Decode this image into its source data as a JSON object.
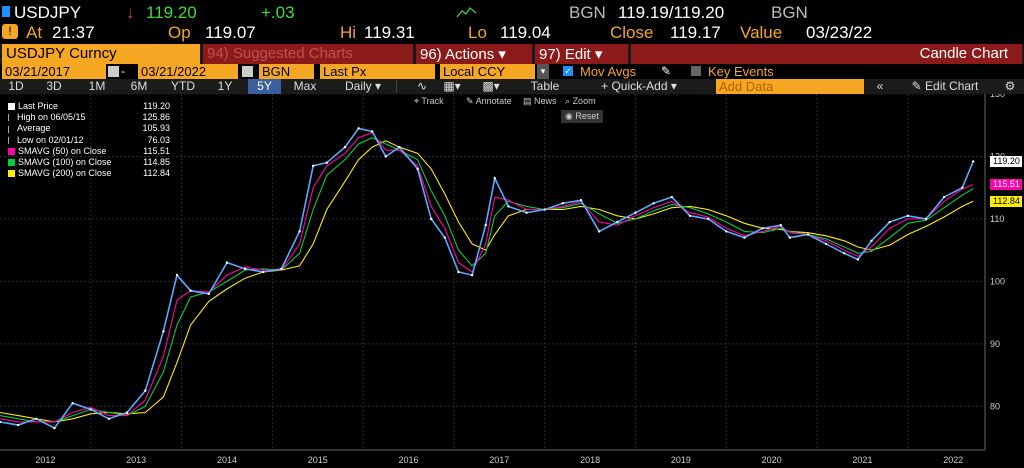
{
  "header": {
    "ticker": "USDJPY",
    "last": "119.20",
    "change": "+.03",
    "source_label": "BGN",
    "bid_ask": "119.19/119.20",
    "source_label2": "BGN",
    "at_label": "At",
    "time": "21:37",
    "op_label": "Op",
    "open": "119.07",
    "hi_label": "Hi",
    "high": "119.31",
    "lo_label": "Lo",
    "low": "119.04",
    "close_label": "Close",
    "close": "119.17",
    "value_label": "Value",
    "value_date": "03/23/22"
  },
  "toolbar": {
    "security": "USDJPY Curncy",
    "suggested": "94) Suggested Charts",
    "actions": "96) Actions",
    "edit": "97) Edit",
    "chart_type": "Candle Chart",
    "start_date": "03/21/2017",
    "end_date": "03/21/2022",
    "source": "BGN",
    "price_field": "Last Px",
    "currency": "Local CCY",
    "mov_avgs": "Mov Avgs",
    "key_events": "Key Events"
  },
  "periods": [
    "1D",
    "3D",
    "1M",
    "6M",
    "YTD",
    "1Y",
    "5Y",
    "Max"
  ],
  "selected_period": "5Y",
  "frequency": "Daily",
  "table_label": "Table",
  "quick_add_label": "+ Quick-Add",
  "add_data_placeholder": "Add Data",
  "edit_chart_label": "Edit Chart",
  "tools": {
    "track": "Track",
    "annotate": "Annotate",
    "news": "News",
    "zoom": "Zoom",
    "reset": "Reset"
  },
  "legend": [
    {
      "label": "Last Price",
      "value": "119.20",
      "color": "#ffffff"
    },
    {
      "label": "High on 06/05/15",
      "value": "125.86",
      "color": ""
    },
    {
      "label": "Average",
      "value": "105.93",
      "color": ""
    },
    {
      "label": "Low on 02/01/12",
      "value": "76.03",
      "color": ""
    },
    {
      "label": "SMAVG (50)  on Close",
      "value": "115.51",
      "color": "#ff00aa"
    },
    {
      "label": "SMAVG (100)  on Close",
      "value": "114.85",
      "color": "#00cc44"
    },
    {
      "label": "SMAVG (200)  on Close",
      "value": "112.84",
      "color": "#ffee00"
    }
  ],
  "price_tags": [
    {
      "value": "119.20",
      "color": "#ffffff",
      "text_color": "#000000"
    },
    {
      "value": "115.51",
      "color": "#ff00aa",
      "text_color": "#ffffff"
    },
    {
      "value": "112.84",
      "color": "#ffee00",
      "text_color": "#000000"
    }
  ],
  "chart_data": {
    "type": "line",
    "title": "",
    "xlabel": "",
    "ylabel": "",
    "ylim": [
      73,
      130
    ],
    "y_ticks": [
      80,
      90,
      100,
      110,
      120,
      130
    ],
    "x_ticks": [
      "2012",
      "2013",
      "2014",
      "2015",
      "2016",
      "2017",
      "2018",
      "2019",
      "2020",
      "2021",
      "2022"
    ],
    "grid": true,
    "x": [
      2011.5,
      2011.7,
      2011.9,
      2012.1,
      2012.3,
      2012.5,
      2012.7,
      2012.9,
      2013.1,
      2013.3,
      2013.45,
      2013.6,
      2013.8,
      2014.0,
      2014.2,
      2014.4,
      2014.6,
      2014.8,
      2014.95,
      2015.1,
      2015.3,
      2015.45,
      2015.6,
      2015.75,
      2015.9,
      2016.1,
      2016.25,
      2016.4,
      2016.55,
      2016.7,
      2016.85,
      2016.95,
      2017.1,
      2017.3,
      2017.5,
      2017.7,
      2017.9,
      2018.1,
      2018.3,
      2018.5,
      2018.7,
      2018.9,
      2019.1,
      2019.3,
      2019.5,
      2019.7,
      2019.9,
      2020.1,
      2020.2,
      2020.4,
      2020.6,
      2020.8,
      2020.95,
      2021.1,
      2021.3,
      2021.5,
      2021.7,
      2021.9,
      2022.1,
      2022.22
    ],
    "series": [
      {
        "name": "Last Price",
        "color": "#5aaaff",
        "values": [
          77.5,
          77.0,
          78.0,
          76.5,
          80.5,
          79.5,
          78.0,
          79.0,
          82.5,
          92.0,
          101.0,
          98.5,
          98.0,
          103.0,
          102.0,
          101.5,
          102.0,
          108.0,
          118.5,
          119.0,
          121.5,
          124.5,
          124.0,
          120.0,
          121.5,
          118.0,
          110.0,
          107.0,
          101.5,
          101.0,
          109.0,
          116.5,
          112.0,
          111.0,
          111.5,
          112.5,
          113.0,
          108.0,
          109.5,
          111.0,
          112.5,
          113.5,
          110.5,
          110.0,
          108.0,
          107.0,
          108.5,
          109.0,
          107.0,
          107.5,
          106.0,
          104.5,
          103.5,
          106.5,
          109.5,
          110.5,
          110.0,
          113.5,
          115.0,
          119.2
        ]
      },
      {
        "name": "SMAVG (50)  on Close",
        "color": "#ff00aa",
        "values": [
          78.0,
          77.5,
          77.5,
          77.5,
          79.0,
          79.8,
          78.5,
          78.5,
          81.0,
          88.0,
          97.0,
          98.5,
          98.3,
          101.0,
          102.3,
          101.8,
          101.8,
          106.0,
          115.0,
          118.5,
          120.5,
          123.0,
          123.8,
          121.0,
          121.0,
          118.5,
          112.0,
          108.5,
          103.0,
          101.5,
          106.0,
          113.5,
          113.0,
          111.5,
          111.5,
          112.0,
          112.8,
          109.5,
          109.0,
          110.5,
          111.8,
          112.8,
          111.0,
          110.3,
          108.5,
          107.3,
          108.0,
          108.8,
          107.8,
          107.5,
          106.5,
          105.0,
          104.0,
          105.5,
          108.5,
          110.0,
          110.0,
          112.8,
          114.8,
          115.5
        ]
      },
      {
        "name": "SMAVG (100)  on Close",
        "color": "#00cc44",
        "values": [
          78.5,
          78.0,
          77.5,
          77.5,
          78.5,
          79.5,
          79.0,
          78.5,
          80.0,
          85.5,
          93.0,
          97.5,
          98.3,
          100.0,
          101.8,
          102.0,
          101.8,
          104.5,
          111.5,
          117.0,
          119.5,
          122.0,
          123.0,
          122.0,
          121.0,
          119.5,
          114.5,
          110.5,
          105.0,
          102.5,
          104.5,
          110.5,
          112.8,
          112.0,
          111.5,
          111.8,
          112.5,
          110.8,
          109.3,
          110.0,
          111.3,
          112.3,
          111.8,
          110.8,
          109.5,
          108.0,
          107.8,
          108.5,
          108.0,
          107.5,
          106.8,
          105.5,
          104.5,
          104.8,
          107.0,
          109.3,
          109.8,
          111.8,
          113.8,
          114.85
        ]
      },
      {
        "name": "SMAVG (200)  on Close",
        "color": "#ffee00",
        "values": [
          79.0,
          78.5,
          78.0,
          77.5,
          78.0,
          78.8,
          79.0,
          78.8,
          79.0,
          81.5,
          87.0,
          93.0,
          96.8,
          98.8,
          100.5,
          101.5,
          101.8,
          102.5,
          106.0,
          111.5,
          116.0,
          119.5,
          121.5,
          122.5,
          121.5,
          120.5,
          118.0,
          114.0,
          109.5,
          106.0,
          105.0,
          107.5,
          110.5,
          111.5,
          111.5,
          111.5,
          112.0,
          111.5,
          110.5,
          110.0,
          110.8,
          111.8,
          112.0,
          111.5,
          110.5,
          109.3,
          108.5,
          108.3,
          108.0,
          107.8,
          107.3,
          106.5,
          105.5,
          105.0,
          105.8,
          107.5,
          108.8,
          110.3,
          112.0,
          112.84
        ]
      }
    ]
  }
}
